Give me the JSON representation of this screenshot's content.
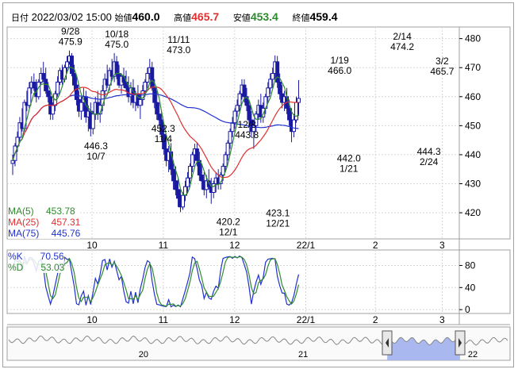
{
  "header": {
    "date_label": "日付",
    "datetime": "2022/03/02 15:00",
    "open_label": "始値",
    "open": "460.0",
    "high_label": "高値",
    "high": "465.7",
    "low_label": "安値",
    "low": "453.4",
    "close_label": "終値",
    "close": "459.4"
  },
  "colors": {
    "up_candle": "#ffffff",
    "down_candle": "#1a1aa0",
    "ma5": "#2e8b2e",
    "ma25": "#e03030",
    "ma75": "#2030d0",
    "k_line": "#2030d0",
    "d_line": "#2e8b2e",
    "high_text": "#e03030",
    "low_text": "#2e8b2e",
    "navigator_area": "#aab8f0",
    "grid": "#d8d8d8"
  },
  "legend_ma": [
    {
      "name": "MA(5)",
      "value": "453.78",
      "color": "#2e8b2e"
    },
    {
      "name": "MA(25)",
      "value": "457.31",
      "color": "#e03030"
    },
    {
      "name": "MA(75)",
      "value": "445.76",
      "color": "#2030d0"
    }
  ],
  "legend_stoch": [
    {
      "name": "%K",
      "value": "70.56",
      "color": "#2030d0"
    },
    {
      "name": "%D",
      "value": "53.03",
      "color": "#2e8b2e"
    }
  ],
  "chart_data": {
    "type": "candlestick",
    "price_axis": {
      "ticks": [
        420,
        430,
        440,
        450,
        460,
        470,
        480
      ],
      "ylim": [
        411,
        484
      ]
    },
    "stoch_axis": {
      "ticks": [
        0,
        40,
        80
      ],
      "ylim": [
        -7,
        108
      ]
    },
    "x_ticks": [
      {
        "label": "10",
        "pos": 0.2183
      },
      {
        "label": "11",
        "pos": 0.4143
      },
      {
        "label": "12",
        "pos": 0.6105
      },
      {
        "label": "22/1",
        "pos": 0.8061
      },
      {
        "label": "2",
        "pos": 0.9976
      },
      {
        "label": "3",
        "pos": 1.1812
      }
    ],
    "x_range": [
      0,
      1.2
    ],
    "annotations": [
      {
        "date": "9/28",
        "value": "475.9",
        "pos": 0.1587,
        "price": 475.9,
        "side": "above"
      },
      {
        "date": "10/18",
        "value": "475.0",
        "pos": 0.2863,
        "price": 475.0,
        "side": "above"
      },
      {
        "date": "11/11",
        "value": "473.0",
        "pos": 0.4567,
        "price": 473.0,
        "side": "above"
      },
      {
        "date": "1/19",
        "value": "466.0",
        "pos": 0.8993,
        "price": 466.0,
        "side": "above"
      },
      {
        "date": "2/14",
        "value": "474.2",
        "pos": 1.0715,
        "price": 474.2,
        "side": "above"
      },
      {
        "date": "3/2",
        "value": "465.7",
        "pos": 1.1812,
        "price": 465.7,
        "side": "above"
      },
      {
        "date": "12/8",
        "value": "443.8",
        "pos": 0.6441,
        "price": 443.8,
        "side": "above"
      },
      {
        "date": "11/4",
        "value": "452.3",
        "pos": 0.4142,
        "price": 452.3,
        "side": "below"
      },
      {
        "date": "10/7",
        "value": "446.3",
        "pos": 0.229,
        "price": 446.3,
        "side": "below"
      },
      {
        "date": "12/1",
        "value": "420.2",
        "pos": 0.5929,
        "price": 420.2,
        "side": "below"
      },
      {
        "date": "12/21",
        "value": "423.1",
        "pos": 0.7293,
        "price": 423.1,
        "side": "below"
      },
      {
        "date": "1/21",
        "value": "442.0",
        "pos": 0.9246,
        "price": 442.0,
        "side": "below"
      },
      {
        "date": "2/24",
        "value": "444.3",
        "pos": 1.1447,
        "price": 444.3,
        "side": "below"
      }
    ],
    "candles": [
      [
        0.0,
        437,
        440,
        433,
        438
      ],
      [
        0.0065,
        438,
        444,
        436,
        443
      ],
      [
        0.013,
        443,
        448,
        441,
        446
      ],
      [
        0.0195,
        446,
        453,
        444,
        451
      ],
      [
        0.026,
        451,
        456,
        448,
        449
      ],
      [
        0.0325,
        449,
        459,
        448,
        458
      ],
      [
        0.039,
        458,
        462,
        455,
        457
      ],
      [
        0.0455,
        457,
        465,
        456,
        463
      ],
      [
        0.052,
        463,
        467,
        461,
        465
      ],
      [
        0.0585,
        465,
        468,
        462,
        463
      ],
      [
        0.065,
        463,
        466,
        458,
        460
      ],
      [
        0.0715,
        460,
        466,
        459,
        465
      ],
      [
        0.078,
        465,
        470,
        464,
        468
      ],
      [
        0.0845,
        468,
        472,
        465,
        466
      ],
      [
        0.091,
        466,
        470,
        461,
        462
      ],
      [
        0.0975,
        462,
        465,
        458,
        460
      ],
      [
        0.104,
        460,
        462,
        452,
        454
      ],
      [
        0.1105,
        454,
        458,
        452,
        457
      ],
      [
        0.117,
        457,
        462,
        455,
        461
      ],
      [
        0.1235,
        461,
        467,
        460,
        465
      ],
      [
        0.13,
        465,
        470,
        464,
        469
      ],
      [
        0.1365,
        469,
        471,
        464,
        466
      ],
      [
        0.143,
        466,
        471,
        465,
        470
      ],
      [
        0.1495,
        470,
        474,
        468,
        472
      ],
      [
        0.156,
        472,
        475.9,
        471,
        474
      ],
      [
        0.1625,
        474,
        475,
        467,
        468
      ],
      [
        0.169,
        468,
        471,
        462,
        464
      ],
      [
        0.1755,
        464,
        467,
        457,
        459
      ],
      [
        0.182,
        459,
        462,
        453,
        455
      ],
      [
        0.1885,
        455,
        460,
        452,
        458
      ],
      [
        0.195,
        458,
        463,
        455,
        460
      ],
      [
        0.2015,
        460,
        462,
        451,
        453
      ],
      [
        0.208,
        453,
        457,
        448,
        455
      ],
      [
        0.2145,
        455,
        458,
        446.3,
        449
      ],
      [
        0.221,
        449,
        455,
        447,
        454
      ],
      [
        0.2275,
        454,
        460,
        452,
        458
      ],
      [
        0.234,
        458,
        462,
        452,
        454
      ],
      [
        0.2405,
        454,
        459,
        451,
        457
      ],
      [
        0.247,
        457,
        464,
        455,
        462
      ],
      [
        0.2535,
        462,
        468,
        460,
        466
      ],
      [
        0.26,
        466,
        471,
        463,
        464
      ],
      [
        0.2665,
        464,
        470,
        462,
        469
      ],
      [
        0.273,
        469,
        473,
        466,
        467
      ],
      [
        0.2795,
        467,
        475.0,
        465,
        472
      ],
      [
        0.286,
        472,
        474,
        466,
        468
      ],
      [
        0.2925,
        468,
        471,
        463,
        464
      ],
      [
        0.299,
        464,
        468,
        461,
        467
      ],
      [
        0.3055,
        467,
        470,
        463,
        465
      ],
      [
        0.312,
        465,
        469,
        462,
        463
      ],
      [
        0.3185,
        463,
        467,
        458,
        460
      ],
      [
        0.325,
        460,
        465,
        457,
        463
      ],
      [
        0.3315,
        463,
        466,
        456,
        458
      ],
      [
        0.338,
        458,
        462,
        455,
        461
      ],
      [
        0.3445,
        461,
        464,
        456,
        457
      ],
      [
        0.351,
        457,
        461,
        452.3,
        459
      ],
      [
        0.3575,
        459,
        464,
        457,
        462
      ],
      [
        0.364,
        462,
        466,
        460,
        465
      ],
      [
        0.3705,
        465,
        470,
        463,
        468
      ],
      [
        0.377,
        468,
        473.0,
        466,
        470
      ],
      [
        0.3835,
        470,
        472,
        462,
        463
      ],
      [
        0.39,
        463,
        466,
        456,
        458
      ],
      [
        0.3965,
        458,
        462,
        452,
        454
      ],
      [
        0.403,
        454,
        458,
        450,
        452
      ],
      [
        0.4095,
        452,
        455,
        445,
        447
      ],
      [
        0.416,
        447,
        450,
        440,
        442
      ],
      [
        0.4225,
        442,
        446,
        436,
        438
      ],
      [
        0.429,
        438,
        443,
        434,
        441
      ],
      [
        0.4355,
        441,
        444,
        433,
        435
      ],
      [
        0.442,
        435,
        438,
        428,
        431
      ],
      [
        0.4485,
        431,
        436,
        426,
        428
      ],
      [
        0.455,
        428,
        432,
        422,
        425
      ],
      [
        0.4615,
        425,
        428,
        420.2,
        422
      ],
      [
        0.468,
        422,
        427,
        421,
        426
      ],
      [
        0.4745,
        426,
        431,
        424,
        429
      ],
      [
        0.481,
        429,
        434,
        427,
        432
      ],
      [
        0.4875,
        432,
        437,
        430,
        436
      ],
      [
        0.494,
        436,
        441,
        434,
        440
      ],
      [
        0.5005,
        440,
        443.8,
        437,
        442
      ],
      [
        0.507,
        442,
        444,
        436,
        438
      ],
      [
        0.5135,
        438,
        441,
        431,
        433
      ],
      [
        0.52,
        433,
        437,
        428,
        431
      ],
      [
        0.5265,
        431,
        434,
        426,
        428
      ],
      [
        0.533,
        428,
        433,
        425,
        431
      ],
      [
        0.5395,
        431,
        435,
        428,
        429
      ],
      [
        0.546,
        429,
        432,
        423.1,
        427
      ],
      [
        0.5525,
        427,
        431,
        425,
        430
      ],
      [
        0.559,
        430,
        434,
        427,
        432
      ],
      [
        0.5655,
        432,
        435,
        428,
        430
      ],
      [
        0.572,
        430,
        434,
        428,
        433
      ],
      [
        0.5785,
        433,
        437,
        431,
        436
      ],
      [
        0.585,
        436,
        441,
        434,
        440
      ],
      [
        0.5915,
        440,
        445,
        438,
        444
      ],
      [
        0.598,
        444,
        449,
        442,
        448
      ],
      [
        0.6045,
        448,
        453,
        446,
        451
      ],
      [
        0.611,
        451,
        456,
        449,
        455
      ],
      [
        0.6175,
        455,
        459,
        453,
        457
      ],
      [
        0.624,
        457,
        462,
        455,
        461
      ],
      [
        0.6305,
        461,
        466.0,
        459,
        464
      ],
      [
        0.637,
        464,
        466,
        458,
        460
      ],
      [
        0.6435,
        460,
        463,
        455,
        457
      ],
      [
        0.65,
        457,
        459,
        450,
        452
      ],
      [
        0.6565,
        452,
        455,
        446,
        448
      ],
      [
        0.663,
        448,
        452,
        442.0,
        450
      ],
      [
        0.6695,
        450,
        455,
        448,
        454
      ],
      [
        0.676,
        454,
        459,
        452,
        457
      ],
      [
        0.6825,
        457,
        461,
        451,
        453
      ],
      [
        0.689,
        453,
        458,
        451,
        456
      ],
      [
        0.6955,
        456,
        461,
        454,
        460
      ],
      [
        0.702,
        460,
        465,
        458,
        463
      ],
      [
        0.7085,
        463,
        468,
        461,
        466
      ],
      [
        0.715,
        466,
        470,
        463,
        468
      ],
      [
        0.7215,
        468,
        474.2,
        466,
        472
      ],
      [
        0.728,
        472,
        474,
        463,
        465
      ],
      [
        0.7345,
        465,
        468,
        459,
        461
      ],
      [
        0.741,
        461,
        464,
        456,
        458
      ],
      [
        0.7475,
        458,
        462,
        455,
        460
      ],
      [
        0.754,
        460,
        463,
        454,
        456
      ],
      [
        0.7605,
        456,
        459,
        450,
        452
      ],
      [
        0.767,
        452,
        456,
        444.3,
        448
      ],
      [
        0.7735,
        448,
        454,
        446,
        452
      ],
      [
        0.78,
        452,
        460,
        451,
        458
      ],
      [
        0.7865,
        458,
        465.7,
        453.4,
        459.4
      ]
    ],
    "ma5": [],
    "ma25": [],
    "ma75": [],
    "k": [],
    "d": []
  },
  "navigator": {
    "labels": [
      {
        "text": "20",
        "pos": 0.27
      },
      {
        "text": "21",
        "pos": 0.59
      },
      {
        "text": "22",
        "pos": 0.93
      }
    ]
  }
}
